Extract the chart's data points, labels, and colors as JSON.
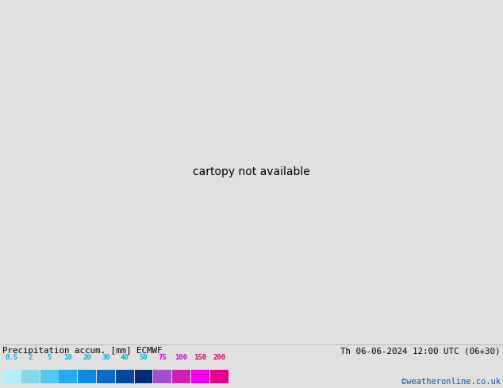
{
  "title_left": "Precipitation accum. [mm] ECMWF",
  "title_right": "Th 06-06-2024 12:00 UTC (06+30)",
  "credit": "©weatheronline.co.uk",
  "legend_values": [
    "0.5",
    "2",
    "5",
    "10",
    "20",
    "30",
    "40",
    "50",
    "75",
    "100",
    "150",
    "200"
  ],
  "legend_colors_boxes": [
    "#b4eef5",
    "#82d8e6",
    "#50c8f0",
    "#28aaf0",
    "#0f8ce0",
    "#0a6cc8",
    "#06489a",
    "#032a72",
    "#a050cc",
    "#d020b4",
    "#f000e6",
    "#e6008c"
  ],
  "legend_label_colors": [
    "#00b4d8",
    "#00b4d8",
    "#00b4d8",
    "#00b4d8",
    "#00b4d8",
    "#00b4d8",
    "#00b4d8",
    "#00b4d8",
    "#cc00cc",
    "#cc00cc",
    "#cc0066",
    "#cc0066"
  ],
  "bg_color": "#e0e0e0",
  "map_land_norain": "#c8dcb0",
  "map_sea_norain": "#ddeeff",
  "fig_width": 6.34,
  "fig_height": 4.9,
  "dpi": 100,
  "levels": [
    0.5,
    2,
    5,
    10,
    20,
    30,
    40,
    50,
    75,
    100,
    150,
    200
  ],
  "precip_colors": [
    "#b4eef5",
    "#82d8e6",
    "#50c8f0",
    "#28aaf0",
    "#0f8ce0",
    "#0a6cc8",
    "#06489a",
    "#032a72",
    "#a050cc",
    "#d020b4",
    "#f000e6",
    "#e6008c"
  ],
  "land_color": "#c8dcb4",
  "sea_color": "#e8f4ff",
  "border_color": "#888888",
  "coast_color": "#888888"
}
